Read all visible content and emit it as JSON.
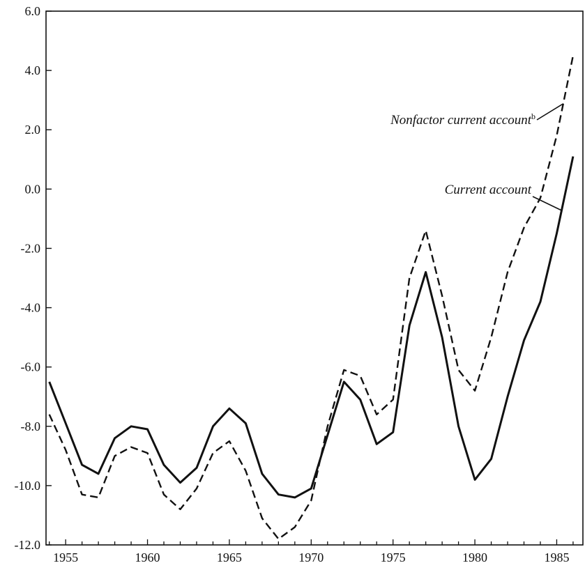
{
  "chart_data": {
    "type": "line",
    "title": "",
    "xlabel": "",
    "ylabel": "",
    "xlim": [
      1953.8,
      1986.6
    ],
    "ylim": [
      -12.0,
      6.0
    ],
    "grid": false,
    "x_ticks": [
      1955,
      1960,
      1965,
      1970,
      1975,
      1980,
      1985
    ],
    "y_ticks": [
      -12.0,
      -10.0,
      -8.0,
      -6.0,
      -4.0,
      -2.0,
      0.0,
      2.0,
      4.0,
      6.0
    ],
    "x_tick_labels": [
      "1955",
      "1960",
      "1965",
      "1970",
      "1975",
      "1980",
      "1985"
    ],
    "y_tick_labels": [
      "-12.0",
      "-10.0",
      "-8.0",
      "-6.0",
      "-4.0",
      "-2.0",
      "0.0",
      "2.0",
      "4.0",
      "6.0"
    ],
    "series": [
      {
        "name": "Current account",
        "style": "solid",
        "color": "#111111",
        "x": [
          1954,
          1955,
          1956,
          1957,
          1958,
          1959,
          1960,
          1961,
          1962,
          1963,
          1964,
          1965,
          1966,
          1967,
          1968,
          1969,
          1970,
          1971,
          1972,
          1973,
          1974,
          1975,
          1976,
          1977,
          1978,
          1979,
          1980,
          1981,
          1982,
          1983,
          1984,
          1985,
          1986
        ],
        "values": [
          -6.5,
          -7.9,
          -9.3,
          -9.6,
          -8.4,
          -8.0,
          -8.1,
          -9.3,
          -9.9,
          -9.4,
          -8.0,
          -7.4,
          -7.9,
          -9.6,
          -10.3,
          -10.4,
          -10.1,
          -8.3,
          -6.5,
          -7.1,
          -8.6,
          -8.2,
          -4.6,
          -2.8,
          -5.0,
          -8.0,
          -9.8,
          -9.1,
          -7.0,
          -5.1,
          -3.8,
          -1.5,
          1.1
        ]
      },
      {
        "name": "Nonfactor current account",
        "name_superscript": "b",
        "style": "dashed",
        "color": "#111111",
        "x": [
          1954,
          1955,
          1956,
          1957,
          1958,
          1959,
          1960,
          1961,
          1962,
          1963,
          1964,
          1965,
          1966,
          1967,
          1968,
          1969,
          1970,
          1971,
          1972,
          1973,
          1974,
          1975,
          1976,
          1977,
          1978,
          1979,
          1980,
          1981,
          1982,
          1983,
          1984,
          1985,
          1986
        ],
        "values": [
          -7.6,
          -8.8,
          -10.3,
          -10.4,
          -9.0,
          -8.7,
          -8.9,
          -10.3,
          -10.8,
          -10.1,
          -8.9,
          -8.5,
          -9.5,
          -11.1,
          -11.8,
          -11.4,
          -10.5,
          -8.0,
          -6.1,
          -6.3,
          -7.6,
          -7.1,
          -3.0,
          -1.4,
          -3.6,
          -6.1,
          -6.8,
          -5.0,
          -2.8,
          -1.3,
          -0.3,
          1.8,
          4.5
        ]
      }
    ],
    "annotations": [
      {
        "text": "Nonfactor current account",
        "superscript": "b",
        "series": "Nonfactor current account",
        "x": 1985.4,
        "y": 1.6
      },
      {
        "text": "Current account",
        "series": "Current account",
        "x": 1985.3,
        "y": -0.85
      }
    ]
  }
}
